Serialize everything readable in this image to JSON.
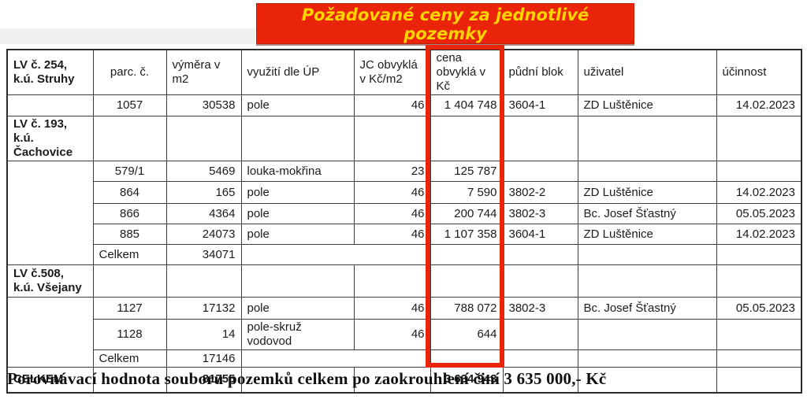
{
  "banner": {
    "line1": "Požadované ceny za jednotlivé",
    "line2": "pozemky",
    "bg_color": "#ea2408",
    "text_color": "#ffd400"
  },
  "highlight": {
    "highlighted_column": "cena obvyklá v Kč",
    "color": "#ea2408"
  },
  "table": {
    "columns": [
      "LV č. 254, k.ú. Struhy",
      "parc. č.",
      "výměra v m2",
      "využití dle ÚP",
      "JC obvyklá v Kč/m2",
      "cena obvyklá v Kč",
      "půdní blok",
      "uživatel",
      "účinnost"
    ],
    "rows": [
      {
        "header": true,
        "cells": [
          {
            "t": "LV č. 254, k.ú. Struhy",
            "b": true
          },
          {
            "t": "parc. č.",
            "a": "c"
          },
          {
            "t": "výměra v m2"
          },
          {
            "t": "využití dle ÚP"
          },
          {
            "t": "JC obvyklá v Kč/m2"
          },
          {
            "t": "cena obvyklá v Kč"
          },
          {
            "t": "půdní blok"
          },
          {
            "t": "uživatel"
          },
          {
            "t": "účinnost"
          }
        ]
      },
      {
        "cells": [
          {
            "t": ""
          },
          {
            "t": "1057",
            "a": "c"
          },
          {
            "t": "30538",
            "a": "r"
          },
          {
            "t": "pole"
          },
          {
            "t": "46",
            "a": "r"
          },
          {
            "t": "1 404 748",
            "a": "r",
            "p": true
          },
          {
            "t": "3604-1"
          },
          {
            "t": "ZD Luštěnice"
          },
          {
            "t": "14.02.2023",
            "a": "r"
          }
        ]
      },
      {
        "cells": [
          {
            "t": "LV č. 193, k.ú. Čachovice",
            "b": true,
            "g": true
          },
          {
            "t": ""
          },
          {
            "t": ""
          },
          {
            "t": ""
          },
          {
            "t": ""
          },
          {
            "t": ""
          },
          {
            "t": ""
          },
          {
            "t": ""
          },
          {
            "t": ""
          }
        ]
      },
      {
        "cells": [
          {
            "t": "",
            "rs": 5
          },
          {
            "t": "579/1",
            "a": "c"
          },
          {
            "t": "5469",
            "a": "r"
          },
          {
            "t": "louka-mokřina"
          },
          {
            "t": "23",
            "a": "r"
          },
          {
            "t": "125 787",
            "a": "r",
            "p": true
          },
          {
            "t": ""
          },
          {
            "t": ""
          },
          {
            "t": ""
          }
        ]
      },
      {
        "cells": [
          {
            "t": "864",
            "a": "c"
          },
          {
            "t": "165",
            "a": "r"
          },
          {
            "t": "pole"
          },
          {
            "t": "46",
            "a": "r"
          },
          {
            "t": "7 590",
            "a": "r",
            "p": true
          },
          {
            "t": "3802-2"
          },
          {
            "t": "ZD Luštěnice"
          },
          {
            "t": "14.02.2023",
            "a": "r"
          }
        ]
      },
      {
        "cells": [
          {
            "t": "866",
            "a": "c"
          },
          {
            "t": "4364",
            "a": "r"
          },
          {
            "t": "pole"
          },
          {
            "t": "46",
            "a": "r"
          },
          {
            "t": "200 744",
            "a": "r",
            "p": true
          },
          {
            "t": "3802-3"
          },
          {
            "t": "Bc. Josef Šťastný"
          },
          {
            "t": "05.05.2023",
            "a": "r"
          }
        ]
      },
      {
        "cells": [
          {
            "t": "885",
            "a": "c"
          },
          {
            "t": "24073",
            "a": "r"
          },
          {
            "t": "pole"
          },
          {
            "t": "46",
            "a": "r"
          },
          {
            "t": "1 107 358",
            "a": "r",
            "p": true
          },
          {
            "t": "3604-1"
          },
          {
            "t": "ZD Luštěnice"
          },
          {
            "t": "14.02.2023",
            "a": "r"
          }
        ]
      },
      {
        "cells": [
          {
            "t": "Celkem"
          },
          {
            "t": "34071",
            "a": "r"
          },
          {
            "t": "",
            "cs": 2
          },
          {
            "t": "",
            "p": true
          },
          {
            "t": ""
          },
          {
            "t": ""
          },
          {
            "t": ""
          }
        ]
      },
      {
        "cells": [
          {
            "t": "LV č.508, k.ú. Všejany",
            "b": true,
            "g": true
          },
          {
            "t": ""
          },
          {
            "t": ""
          },
          {
            "t": ""
          },
          {
            "t": ""
          },
          {
            "t": ""
          },
          {
            "t": ""
          },
          {
            "t": ""
          },
          {
            "t": ""
          }
        ]
      },
      {
        "cells": [
          {
            "t": "",
            "rs": 3
          },
          {
            "t": "1127",
            "a": "c"
          },
          {
            "t": "17132",
            "a": "r"
          },
          {
            "t": "pole"
          },
          {
            "t": "46",
            "a": "r"
          },
          {
            "t": "788 072",
            "a": "r",
            "p": true
          },
          {
            "t": "3802-3"
          },
          {
            "t": "Bc. Josef Šťastný"
          },
          {
            "t": "05.05.2023",
            "a": "r"
          }
        ]
      },
      {
        "cells": [
          {
            "t": "1128",
            "a": "c"
          },
          {
            "t": "14",
            "a": "r"
          },
          {
            "t": "pole-skruž vodovod"
          },
          {
            "t": "46",
            "a": "r"
          },
          {
            "t": "644",
            "a": "r",
            "p": true
          },
          {
            "t": ""
          },
          {
            "t": ""
          },
          {
            "t": ""
          }
        ]
      },
      {
        "cells": [
          {
            "t": "Celkem"
          },
          {
            "t": "17146",
            "a": "r"
          },
          {
            "t": "",
            "cs": 2
          },
          {
            "t": "",
            "p": true
          },
          {
            "t": ""
          },
          {
            "t": ""
          },
          {
            "t": ""
          }
        ]
      },
      {
        "cells": [
          {
            "t": "CELKEM",
            "b": true
          },
          {
            "t": ""
          },
          {
            "t": "81755",
            "a": "r",
            "b": true
          },
          {
            "t": ""
          },
          {
            "t": ""
          },
          {
            "t": "3 634 943",
            "a": "r",
            "b": true,
            "p": true
          },
          {
            "t": ""
          },
          {
            "t": ""
          },
          {
            "t": ""
          }
        ]
      }
    ]
  },
  "footer": {
    "text": "Porovnávací hodnota souboru pozemků celkem po zaokrouhlení činí 3 635 000,- Kč"
  }
}
